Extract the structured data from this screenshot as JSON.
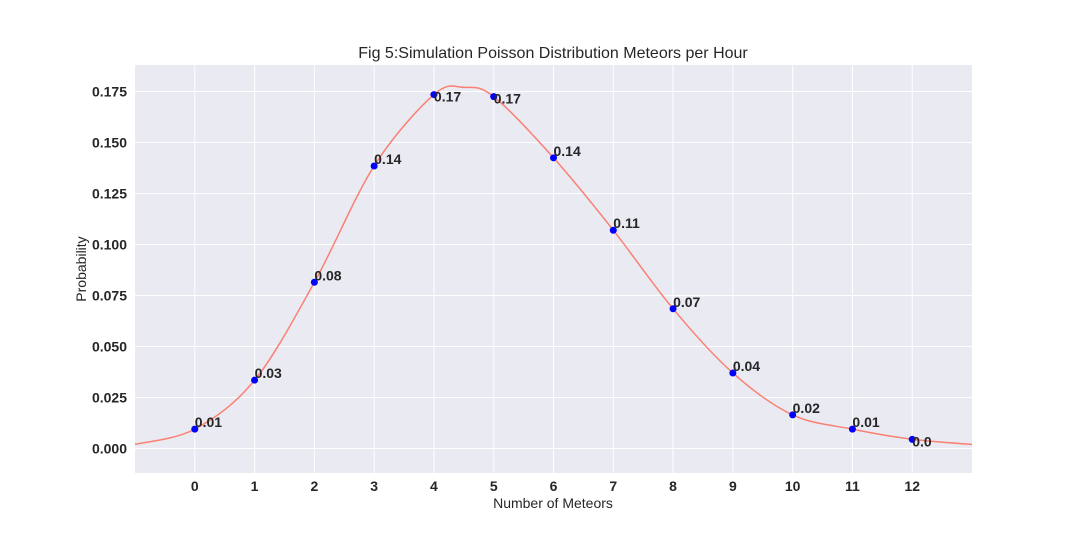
{
  "chart_data": {
    "type": "scatter",
    "title": "Fig 5:Simulation Poisson Distribution Meteors per Hour",
    "xlabel": "Number of Meteors",
    "ylabel": "Probability",
    "xlim": [
      -1,
      13
    ],
    "ylim": [
      -0.012,
      0.188
    ],
    "xticks": [
      0,
      1,
      2,
      3,
      4,
      5,
      6,
      7,
      8,
      9,
      10,
      11,
      12
    ],
    "yticks": [
      "0.000",
      "0.025",
      "0.050",
      "0.075",
      "0.100",
      "0.125",
      "0.150",
      "0.175"
    ],
    "grid": true,
    "points": {
      "x": [
        0,
        1,
        2,
        3,
        4,
        5,
        6,
        7,
        8,
        9,
        10,
        11,
        12
      ],
      "y": [
        0.0095,
        0.0335,
        0.0815,
        0.1385,
        0.1735,
        0.1725,
        0.1425,
        0.107,
        0.0685,
        0.037,
        0.0165,
        0.0095,
        0.0045
      ],
      "labels": [
        "0.01",
        "0.03",
        "0.08",
        "0.14",
        "0.17",
        "0.17",
        "0.14",
        "0.11",
        "0.07",
        "0.04",
        "0.02",
        "0.01",
        "0.0"
      ],
      "color": "#0000ff"
    },
    "smooth_curve": {
      "color": "#fa8072",
      "x": [
        -1,
        0,
        1,
        2,
        3,
        4,
        4.5,
        5,
        6,
        7,
        8,
        9,
        10,
        11,
        12,
        13
      ],
      "y": [
        0.002,
        0.0095,
        0.0335,
        0.0815,
        0.1385,
        0.1735,
        0.177,
        0.1725,
        0.1425,
        0.107,
        0.0685,
        0.037,
        0.0165,
        0.0095,
        0.0045,
        0.002
      ]
    },
    "plot_background": "#eaeaf2",
    "grid_color": "#ffffff"
  }
}
